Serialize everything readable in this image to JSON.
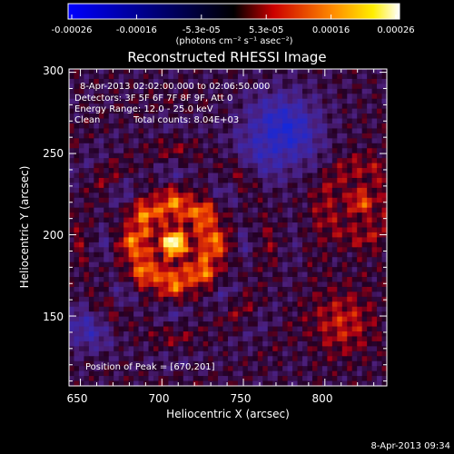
{
  "colorbar": {
    "tick_labels": [
      "-0.00026",
      "-0.00016",
      "-5.3e-05",
      "5.3e-05",
      "0.00016",
      "0.00026"
    ],
    "units_label": "(photons cm⁻² s⁻¹ asec⁻²)",
    "colormap": [
      "#0000ff",
      "#000000",
      "#ff0000",
      "#ffff00",
      "#ffffff"
    ],
    "range": [
      -0.00026,
      0.00026
    ]
  },
  "image": {
    "title": "Reconstructed RHESSI Image",
    "xlabel": "Heliocentric X (arcsec)",
    "ylabel": "Heliocentric Y (arcsec)",
    "x_tick_labels": [
      "650",
      "700",
      "750",
      "800"
    ],
    "y_tick_labels": [
      "300",
      "250",
      "200",
      "150"
    ],
    "xlim": [
      643,
      838
    ],
    "ylim": [
      107,
      302
    ],
    "peak": [
      670,
      201
    ],
    "annotations": {
      "time_range": "8-Apr-2013 02:02:00.000 to 02:06:50.000",
      "detectors": "Detectors: 3F 5F 6F 7F 8F 9F, Att 0",
      "energy": "Energy Range: 12.0 - 25.0 keV",
      "clean": "Clean",
      "total_counts": "Total counts: 8.04E+03",
      "peak": "Position of Peak = [670,201]"
    }
  },
  "timestamp": "8-Apr-2013 09:34"
}
